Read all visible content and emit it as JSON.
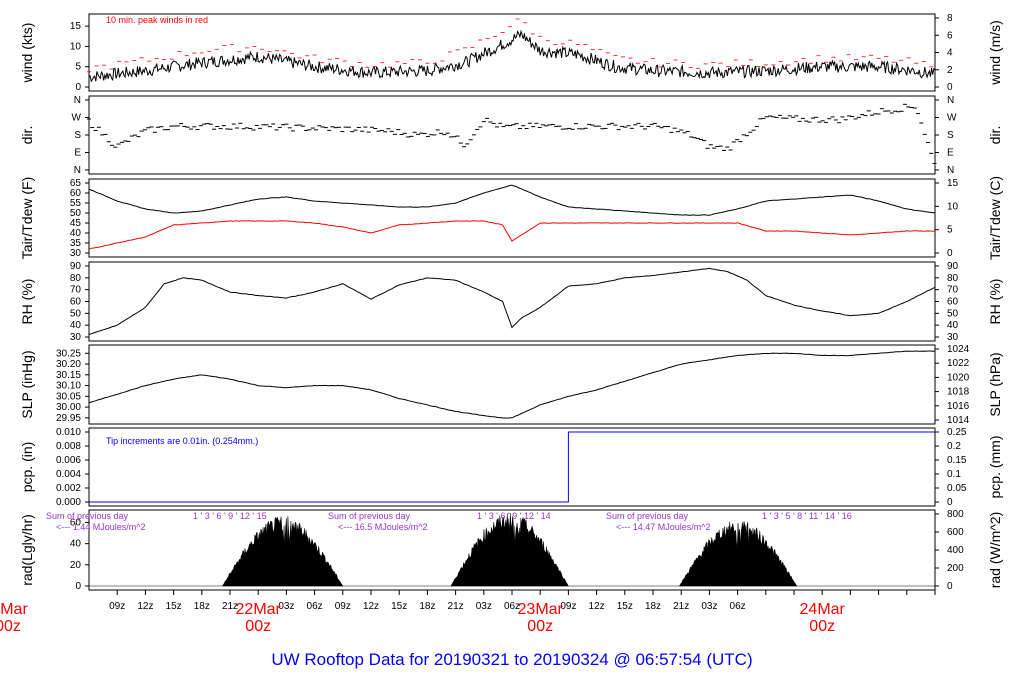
{
  "colors": {
    "wind_peak": "#ff0000",
    "dewpoint": "#ff0000",
    "precip": "#0000ff",
    "radiation_note": "#9933cc",
    "footer": "#0000ff",
    "day_label": "#ff0000"
  },
  "footer": "UW Rooftop Data for 20190321  to  20190324 @ 06:57:54  (UTC)",
  "x_axis": {
    "ticks": [
      "09z",
      "12z",
      "15z",
      "18z",
      "21z",
      "03z",
      "06z",
      "09z",
      "12z",
      "15z",
      "18z",
      "21z",
      "03z",
      "06z",
      "09z",
      "12z",
      "15z",
      "18z",
      "21z",
      "03z",
      "06z"
    ],
    "day_labels": [
      {
        "date": "22Mar",
        "time": "00z"
      },
      {
        "date": "23Mar",
        "time": "00z"
      },
      {
        "date": "24Mar",
        "time": "00z"
      }
    ],
    "first_label": {
      "date": "Mar",
      "time": "00z"
    }
  },
  "chart_data": [
    {
      "type": "line",
      "title": "10 min. peak winds in red",
      "ylabel": "wind (kts)",
      "ylabel_right": "wind (m/s)",
      "ylim": [
        0,
        17
      ],
      "yticks": [
        "0",
        "5",
        "10",
        "15"
      ],
      "yticks_right": [
        "0",
        "2",
        "4",
        "6",
        "8"
      ],
      "series": [
        {
          "name": "wind",
          "x_hours": [
            0,
            6,
            12,
            18,
            24,
            30,
            36,
            40,
            44,
            46,
            48,
            52,
            56,
            60,
            66,
            72,
            78,
            84,
            88,
            90
          ],
          "values": [
            2.5,
            4,
            6,
            7.5,
            5,
            3.5,
            4,
            6,
            10.5,
            13,
            9,
            8,
            5,
            4,
            3.5,
            4,
            5,
            5,
            4,
            3
          ]
        },
        {
          "name": "10 min. peak winds",
          "x_hours": [
            0,
            6,
            12,
            18,
            24,
            30,
            36,
            40,
            44,
            46,
            48,
            52,
            56,
            60,
            66,
            72,
            78,
            84,
            88,
            90
          ],
          "values": [
            4.5,
            6.5,
            9,
            10,
            7,
            5.5,
            6,
            9,
            14,
            16.5,
            12,
            10.5,
            7,
            6,
            5.5,
            6,
            7,
            7,
            6,
            4.5
          ]
        }
      ]
    },
    {
      "type": "scatter",
      "ylabel": "dir.",
      "ylabel_right": "dir.",
      "yticks": [
        "N",
        "E",
        "S",
        "W",
        "N"
      ],
      "series": [
        {
          "name": "direction",
          "x_hours": [
            0,
            3,
            6,
            9,
            12,
            16,
            20,
            24,
            28,
            32,
            35,
            38,
            40,
            42,
            44,
            48,
            52,
            56,
            60,
            62,
            64,
            66,
            68,
            72,
            76,
            80,
            84,
            88,
            90
          ],
          "values": [
            250,
            120,
            200,
            225,
            225,
            225,
            220,
            215,
            210,
            200,
            180,
            200,
            130,
            260,
            220,
            225,
            225,
            225,
            225,
            210,
            180,
            120,
            110,
            270,
            260,
            260,
            300,
            330,
            20
          ]
        }
      ]
    },
    {
      "type": "line",
      "ylabel": "Tair/Tdew (F)",
      "ylabel_right": "Tair/Tdew (C)",
      "ylim": [
        30,
        65
      ],
      "yticks": [
        "30",
        "35",
        "40",
        "45",
        "50",
        "55",
        "60",
        "65"
      ],
      "yticks_right": [
        "0",
        "5",
        "10",
        "15"
      ],
      "series": [
        {
          "name": "Tair",
          "x_hours": [
            0,
            3,
            6,
            9,
            12,
            15,
            18,
            21,
            24,
            27,
            30,
            33,
            36,
            39,
            42,
            45,
            48,
            51,
            54,
            57,
            60,
            63,
            66,
            69,
            72,
            75,
            78,
            81,
            84,
            87,
            90
          ],
          "values": [
            62,
            56,
            52,
            50,
            51,
            54,
            57,
            58,
            56,
            55,
            54,
            53,
            53,
            55,
            60,
            64,
            58,
            53,
            52,
            51,
            50,
            49,
            49,
            52,
            56,
            57,
            58,
            59,
            56,
            52,
            50
          ]
        },
        {
          "name": "Tdew",
          "x_hours": [
            0,
            3,
            6,
            9,
            12,
            15,
            18,
            21,
            24,
            27,
            30,
            33,
            36,
            39,
            42,
            44,
            45,
            48,
            51,
            54,
            57,
            60,
            63,
            66,
            69,
            72,
            75,
            78,
            81,
            84,
            87,
            90
          ],
          "values": [
            32,
            35,
            38,
            44,
            45,
            46,
            46,
            46,
            45,
            43,
            40,
            44,
            45,
            46,
            46,
            44,
            36,
            45,
            45,
            45,
            45,
            45,
            45,
            45,
            45,
            41,
            41,
            40,
            39,
            40,
            41,
            41
          ]
        }
      ]
    },
    {
      "type": "line",
      "ylabel": "RH (%)",
      "ylabel_right": "RH (%)",
      "ylim": [
        30,
        90
      ],
      "yticks": [
        "30",
        "40",
        "50",
        "60",
        "70",
        "80",
        "90"
      ],
      "series": [
        {
          "name": "RH",
          "x_hours": [
            0,
            3,
            6,
            8,
            10,
            12,
            15,
            18,
            21,
            24,
            27,
            30,
            33,
            36,
            39,
            42,
            44,
            45,
            46,
            48,
            51,
            54,
            57,
            60,
            63,
            66,
            68,
            70,
            72,
            75,
            78,
            81,
            84,
            87,
            90
          ],
          "values": [
            32,
            40,
            55,
            75,
            80,
            78,
            68,
            65,
            63,
            68,
            75,
            62,
            74,
            80,
            78,
            68,
            60,
            38,
            46,
            55,
            73,
            75,
            80,
            82,
            85,
            88,
            85,
            78,
            65,
            57,
            52,
            48,
            50,
            60,
            72
          ]
        }
      ]
    },
    {
      "type": "line",
      "ylabel": "SLP (inHg)",
      "ylabel_right": "SLP (hPa)",
      "ylim": [
        29.94,
        30.27
      ],
      "yticks": [
        "29.95",
        "30.00",
        "30.05",
        "30.10",
        "30.15",
        "30.20",
        "30.25"
      ],
      "yticks_right": [
        "1014",
        "1016",
        "1018",
        "1020",
        "1022",
        "1024"
      ],
      "series": [
        {
          "name": "SLP",
          "x_hours": [
            0,
            3,
            6,
            9,
            12,
            15,
            18,
            21,
            24,
            27,
            30,
            33,
            36,
            39,
            42,
            44,
            45,
            48,
            51,
            54,
            57,
            60,
            63,
            66,
            69,
            72,
            75,
            78,
            81,
            84,
            87,
            90
          ],
          "values": [
            30.02,
            30.06,
            30.1,
            30.13,
            30.15,
            30.13,
            30.1,
            30.09,
            30.1,
            30.1,
            30.08,
            30.04,
            30.01,
            29.98,
            29.96,
            29.95,
            29.95,
            30.01,
            30.05,
            30.08,
            30.12,
            30.16,
            30.2,
            30.22,
            30.24,
            30.25,
            30.25,
            30.24,
            30.24,
            30.25,
            30.26,
            30.26
          ]
        }
      ]
    },
    {
      "type": "line",
      "title": "Tip increments are 0.01in. (0.254mm.)",
      "ylabel": "pcp. (in)",
      "ylabel_right": "pcp. (mm)",
      "ylim": [
        0,
        0.01
      ],
      "yticks": [
        "0.000",
        "0.002",
        "0.004",
        "0.006",
        "0.008",
        "0.010"
      ],
      "yticks_right": [
        "0",
        "0.05",
        "0.1",
        "0.15",
        "0.2",
        "0.25"
      ],
      "series": [
        {
          "name": "precip",
          "x_hours": [
            0,
            51,
            51,
            90
          ],
          "values": [
            0,
            0,
            0.01,
            0.01
          ]
        }
      ]
    },
    {
      "type": "area",
      "ylabel": "rad(Lgly/hr)",
      "ylabel_right": "rad (W/m^2)",
      "ylim": [
        0,
        68
      ],
      "yticks": [
        "0",
        "20",
        "40",
        "60"
      ],
      "yticks_right": [
        "0",
        "200",
        "400",
        "600",
        "800"
      ],
      "annotations": [
        {
          "line1": "Sum of previous day",
          "line2": "<--- 1.44 MJoules/m^2"
        },
        {
          "line1": "Sum of previous day",
          "line2": "<--- 16.5 MJoules/m^2"
        },
        {
          "line1": "Sum of previous day",
          "line2": "<--- 14.47 MJoules/m^2"
        }
      ],
      "hour_marks": [
        {
          "labels": [
            "1",
            "3",
            "6",
            "9",
            "12",
            "15"
          ]
        },
        {
          "labels": [
            "1",
            "3",
            "6",
            "9",
            "12",
            "14"
          ]
        },
        {
          "labels": [
            "1",
            "3",
            "5",
            "8",
            "11",
            "14",
            "16"
          ]
        }
      ],
      "days": [
        {
          "start_hour": 14.2,
          "end_hour": 27.0,
          "peak": 60,
          "spike": 72
        },
        {
          "start_hour": 38.5,
          "end_hour": 51.0,
          "peak": 63,
          "spike": 70
        },
        {
          "start_hour": 62.8,
          "end_hour": 75.3,
          "peak": 57,
          "spike": 60
        }
      ]
    }
  ]
}
